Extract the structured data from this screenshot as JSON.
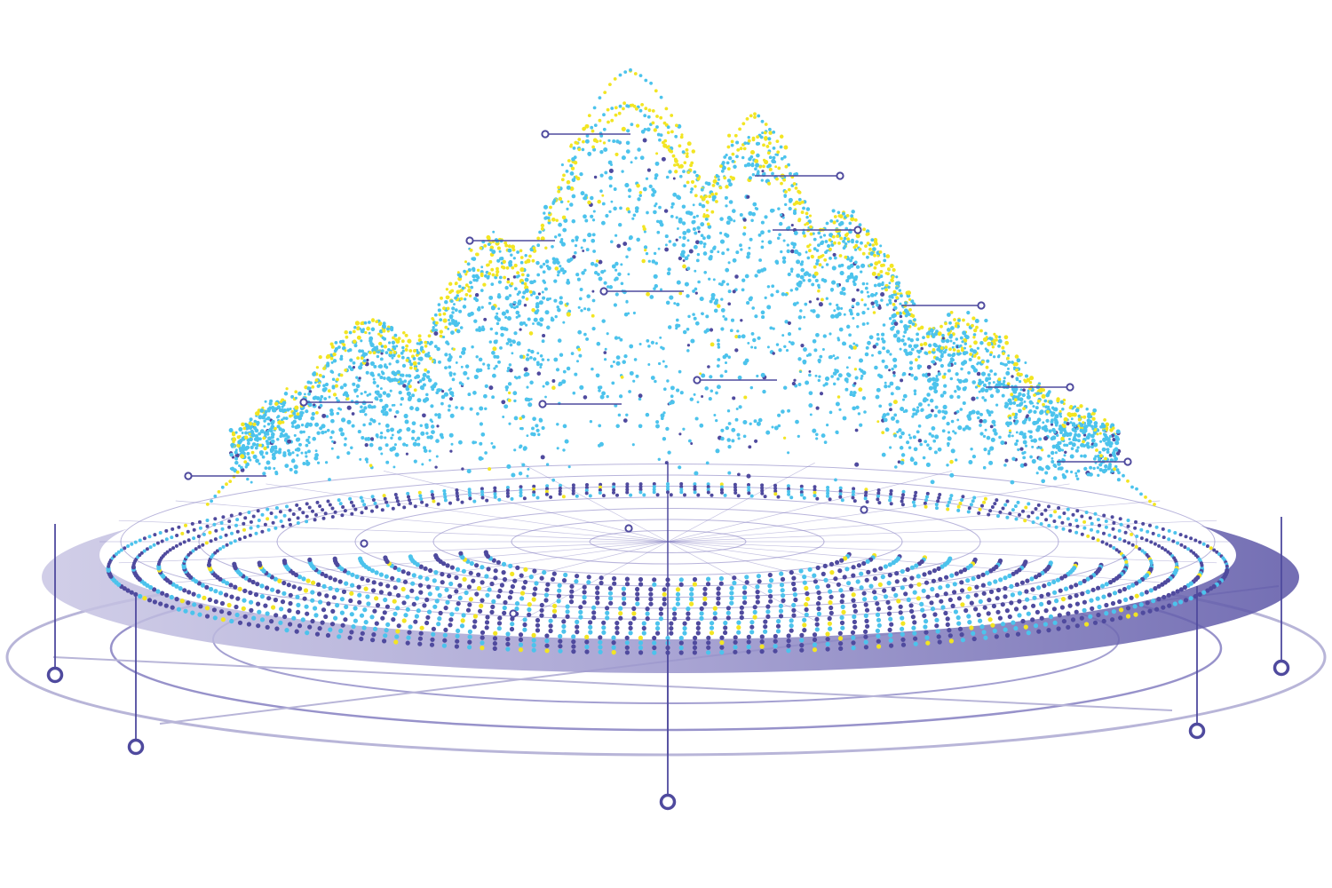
{
  "palette": {
    "indigo": "#4f4a9e",
    "indigo_light": "#b8b5d8",
    "indigo_mid": "#7d77bd",
    "cyan": "#4cc3ec",
    "yellow": "#f2e523",
    "white": "#ffffff"
  },
  "figure": {
    "kind": "3D point-cloud mountain over circular base",
    "callout_markers_upper": 13,
    "callout_markers_lower": 5
  }
}
